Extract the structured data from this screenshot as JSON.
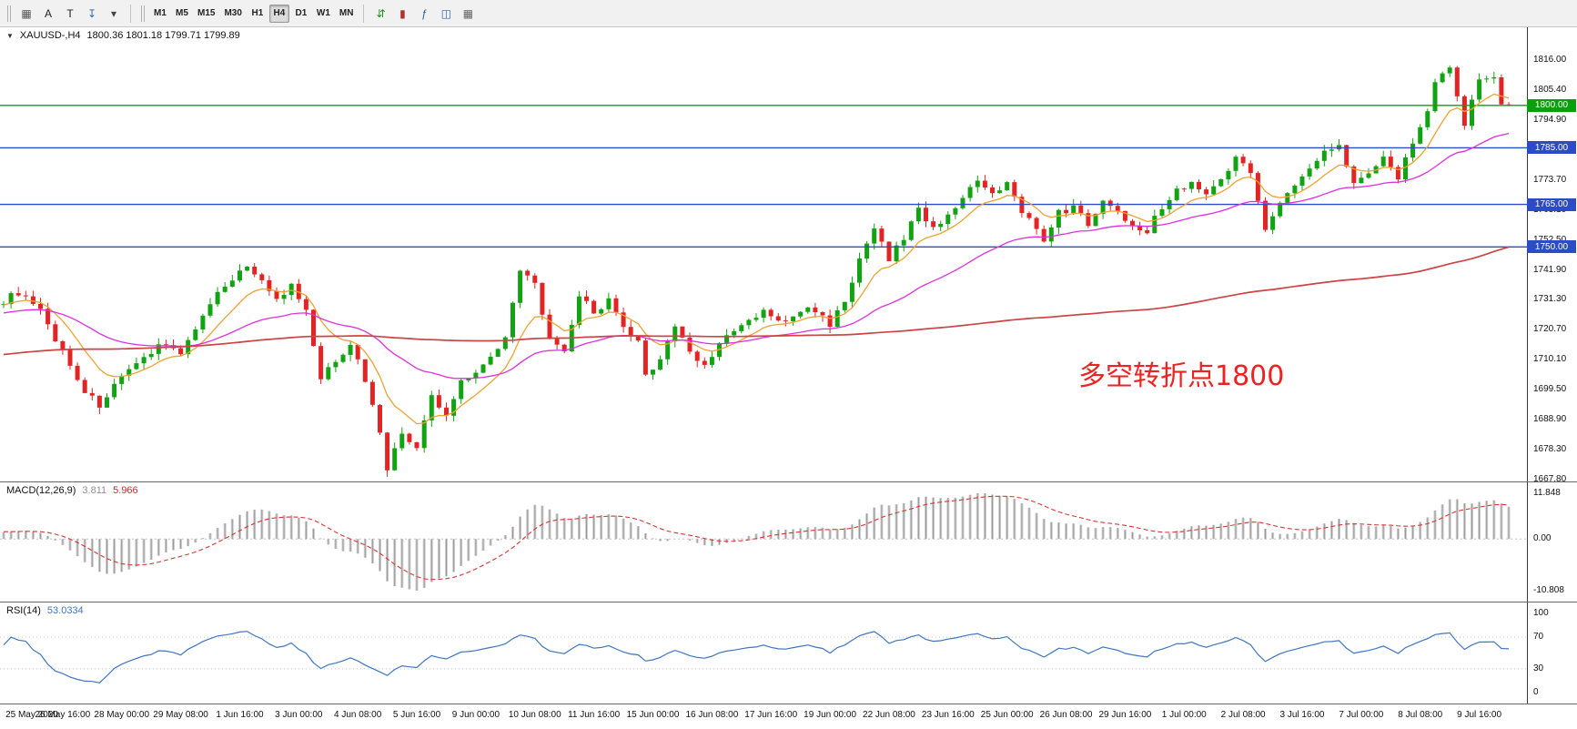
{
  "colors": {
    "up": "#12a312",
    "down": "#e32424",
    "ma_fast": "#eda233",
    "ma_mid": "#dd2fdd",
    "ma_slow": "#cc4444",
    "line_green": "#0aa00a",
    "line_blue": "#2b4cc6",
    "macd_bar_fill": "#cdcdcd",
    "macd_bar_stroke": "#9a9a9a",
    "macd_signal": "#dd3333",
    "rsi_line": "#3f76c0",
    "annotation": "#ee2222"
  },
  "toolbar": {
    "left_icons": [
      {
        "name": "quotes-grid-icon",
        "glyph": "▦",
        "color": "#555555"
      },
      {
        "name": "insert-text-a-button",
        "glyph": "A",
        "color": "#222222"
      },
      {
        "name": "insert-text-t-button",
        "glyph": "T",
        "color": "#222222"
      },
      {
        "name": "arrow-tool-icon",
        "glyph": "↧",
        "color": "#3a6ea5"
      },
      {
        "name": "arrow-dropdown-icon",
        "glyph": "▾",
        "color": "#444444"
      }
    ],
    "timeframes": [
      {
        "label": "M1",
        "active": false
      },
      {
        "label": "M5",
        "active": false
      },
      {
        "label": "M15",
        "active": false
      },
      {
        "label": "M30",
        "active": false
      },
      {
        "label": "H1",
        "active": false
      },
      {
        "label": "H4",
        "active": true
      },
      {
        "label": "D1",
        "active": false
      },
      {
        "label": "W1",
        "active": false
      },
      {
        "label": "MN",
        "active": false
      }
    ],
    "right_icons": [
      {
        "name": "new-order-icon",
        "glyph": "⇵",
        "color": "#1d8f1d"
      },
      {
        "name": "chart-candles-icon",
        "glyph": "▮",
        "color": "#b03030"
      },
      {
        "name": "indicators-icon",
        "glyph": "ƒ",
        "color": "#2d5fa8"
      },
      {
        "name": "chart-window-icon",
        "glyph": "◫",
        "color": "#2d5fa8"
      },
      {
        "name": "tile-windows-icon",
        "glyph": "▦",
        "color": "#666666"
      }
    ]
  },
  "chart": {
    "expand_arrow": "▼",
    "symbol": "XAUUSD-,H4",
    "ohlc_text": "1800.36 1801.18 1799.71 1799.89",
    "annotation": "多空转折点1800"
  },
  "macd_panel": {
    "name": "MACD(12,26,9)",
    "value_main": "3.811",
    "value_signal": "5.966",
    "axis_labels": [
      "11.848",
      "0.00",
      "-10.808"
    ]
  },
  "rsi_panel": {
    "name": "RSI(14)",
    "value": "53.0334",
    "axis_labels": [
      "100",
      "70",
      "30",
      "0"
    ],
    "levels": [
      70,
      30
    ]
  },
  "price_axis": {
    "labels": [
      "1816.00",
      "1805.40",
      "1794.90",
      "1784.30",
      "1773.70",
      "1763.10",
      "1752.50",
      "1741.90",
      "1731.30",
      "1720.70",
      "1710.10",
      "1699.50",
      "1688.90",
      "1678.30",
      "1667.80"
    ],
    "min": 1667.8,
    "max": 1816.0
  },
  "h_lines": [
    {
      "value": 1800.0,
      "label": "1800.00",
      "color_key": "line_green"
    },
    {
      "value": 1785.0,
      "label": "1785.00",
      "color_key": "line_blue"
    },
    {
      "value": 1765.0,
      "label": "1765.00",
      "color_key": "line_blue"
    },
    {
      "value": 1750.0,
      "label": "1750.00",
      "color_key": "line_blue"
    }
  ],
  "time_axis": [
    "25 May 2020",
    "26 May 16:00",
    "28 May 00:00",
    "29 May 08:00",
    "1 Jun 16:00",
    "3 Jun 00:00",
    "4 Jun 08:00",
    "5 Jun 16:00",
    "9 Jun 00:00",
    "10 Jun 08:00",
    "11 Jun 16:00",
    "15 Jun 00:00",
    "16 Jun 08:00",
    "17 Jun 16:00",
    "19 Jun 00:00",
    "22 Jun 08:00",
    "23 Jun 16:00",
    "25 Jun 00:00",
    "26 Jun 08:00",
    "29 Jun 16:00",
    "1 Jul 00:00",
    "2 Jul 08:00",
    "3 Jul 16:00",
    "7 Jul 00:00",
    "8 Jul 08:00",
    "9 Jul 16:00"
  ],
  "chart_data": {
    "type": "candlestick",
    "symbol": "XAUUSD",
    "timeframe": "H4",
    "current_bar": {
      "open": 1800.36,
      "high": 1801.18,
      "low": 1799.71,
      "close": 1799.89
    },
    "macd_values": {
      "main": 3.811,
      "signal": 5.966,
      "scale_max": 11.848,
      "scale_min": -10.808
    },
    "rsi_value": 53.0334,
    "levels": [
      1800,
      1785,
      1765,
      1750
    ],
    "y_range": [
      1667.8,
      1816.0
    ],
    "n_candles": 205,
    "candles_per_label": 8,
    "pre_history": 150,
    "wiggle": 2.4,
    "close_waypoints": [
      [
        -150,
        1692
      ],
      [
        -110,
        1703
      ],
      [
        -70,
        1713
      ],
      [
        -40,
        1721
      ],
      [
        -15,
        1727
      ],
      [
        0,
        1731
      ],
      [
        2,
        1734
      ],
      [
        5,
        1727
      ],
      [
        8,
        1713
      ],
      [
        11,
        1699
      ],
      [
        13,
        1694
      ],
      [
        15,
        1701
      ],
      [
        18,
        1708
      ],
      [
        21,
        1716
      ],
      [
        24,
        1713
      ],
      [
        27,
        1725
      ],
      [
        30,
        1737
      ],
      [
        33,
        1743
      ],
      [
        35,
        1739
      ],
      [
        37,
        1731
      ],
      [
        39,
        1736
      ],
      [
        41,
        1727
      ],
      [
        43,
        1703
      ],
      [
        45,
        1710
      ],
      [
        47,
        1716
      ],
      [
        49,
        1703
      ],
      [
        51,
        1685
      ],
      [
        52,
        1672
      ],
      [
        54,
        1684
      ],
      [
        56,
        1679
      ],
      [
        58,
        1697
      ],
      [
        60,
        1690
      ],
      [
        62,
        1703
      ],
      [
        64,
        1706
      ],
      [
        66,
        1711
      ],
      [
        68,
        1719
      ],
      [
        70,
        1741
      ],
      [
        72,
        1737
      ],
      [
        74,
        1717
      ],
      [
        76,
        1712
      ],
      [
        78,
        1733
      ],
      [
        80,
        1727
      ],
      [
        82,
        1731
      ],
      [
        84,
        1721
      ],
      [
        86,
        1716
      ],
      [
        87,
        1704
      ],
      [
        89,
        1711
      ],
      [
        91,
        1722
      ],
      [
        93,
        1713
      ],
      [
        95,
        1708
      ],
      [
        97,
        1716
      ],
      [
        100,
        1722
      ],
      [
        103,
        1727
      ],
      [
        106,
        1723
      ],
      [
        109,
        1729
      ],
      [
        112,
        1723
      ],
      [
        114,
        1731
      ],
      [
        116,
        1745
      ],
      [
        118,
        1756
      ],
      [
        120,
        1746
      ],
      [
        122,
        1753
      ],
      [
        124,
        1764
      ],
      [
        126,
        1756
      ],
      [
        128,
        1762
      ],
      [
        130,
        1767
      ],
      [
        132,
        1773
      ],
      [
        134,
        1768
      ],
      [
        136,
        1772
      ],
      [
        138,
        1763
      ],
      [
        140,
        1757
      ],
      [
        141,
        1751
      ],
      [
        143,
        1762
      ],
      [
        145,
        1764
      ],
      [
        147,
        1758
      ],
      [
        149,
        1767
      ],
      [
        151,
        1762
      ],
      [
        153,
        1758
      ],
      [
        155,
        1756
      ],
      [
        157,
        1764
      ],
      [
        159,
        1770
      ],
      [
        161,
        1773
      ],
      [
        163,
        1768
      ],
      [
        165,
        1775
      ],
      [
        167,
        1781
      ],
      [
        169,
        1777
      ],
      [
        171,
        1757
      ],
      [
        173,
        1765
      ],
      [
        175,
        1772
      ],
      [
        177,
        1777
      ],
      [
        179,
        1784
      ],
      [
        181,
        1787
      ],
      [
        183,
        1772
      ],
      [
        185,
        1777
      ],
      [
        187,
        1781
      ],
      [
        189,
        1775
      ],
      [
        191,
        1787
      ],
      [
        193,
        1798
      ],
      [
        194,
        1809
      ],
      [
        196,
        1813
      ],
      [
        198,
        1793
      ],
      [
        200,
        1809
      ],
      [
        202,
        1811
      ],
      [
        203,
        1797
      ],
      [
        204,
        1799.89
      ]
    ],
    "moving_averages": [
      {
        "name": "ma-fast",
        "method": "ema",
        "period": 9,
        "color_key": "ma_fast"
      },
      {
        "name": "ma-mid",
        "method": "ema",
        "period": 34,
        "color_key": "ma_mid"
      },
      {
        "name": "ma-slow",
        "method": "sma",
        "period": 150,
        "color_key": "ma_slow"
      }
    ],
    "macd_params": {
      "fast": 12,
      "slow": 26,
      "signal": 9
    },
    "rsi_params": {
      "period": 14
    }
  }
}
